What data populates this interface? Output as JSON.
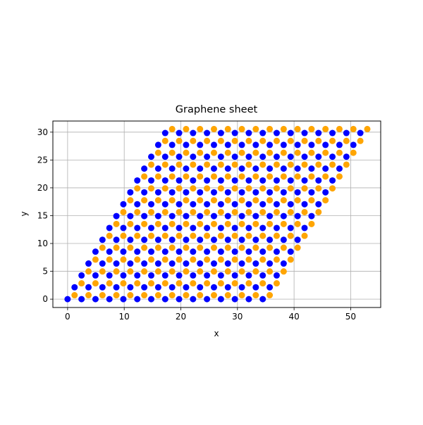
{
  "chart_data": {
    "type": "scatter",
    "title": "Graphene sheet",
    "xlabel": "x",
    "ylabel": "y",
    "xlim": [
      -2.6,
      55.3
    ],
    "ylim": [
      -1.5,
      32.0
    ],
    "xticks": [
      0,
      10,
      20,
      30,
      40,
      50
    ],
    "yticks": [
      0,
      5,
      10,
      15,
      20,
      25,
      30
    ],
    "grid": true,
    "lattice": {
      "a1": [
        2.462,
        0.0
      ],
      "a2": [
        1.231,
        2.132
      ],
      "n1": 15,
      "n2": 15
    },
    "series": [
      {
        "color": "#0000ff",
        "basis": [
          0.0,
          0.0
        ]
      },
      {
        "color": "#ffa500",
        "basis": [
          1.231,
          0.711
        ]
      }
    ]
  }
}
